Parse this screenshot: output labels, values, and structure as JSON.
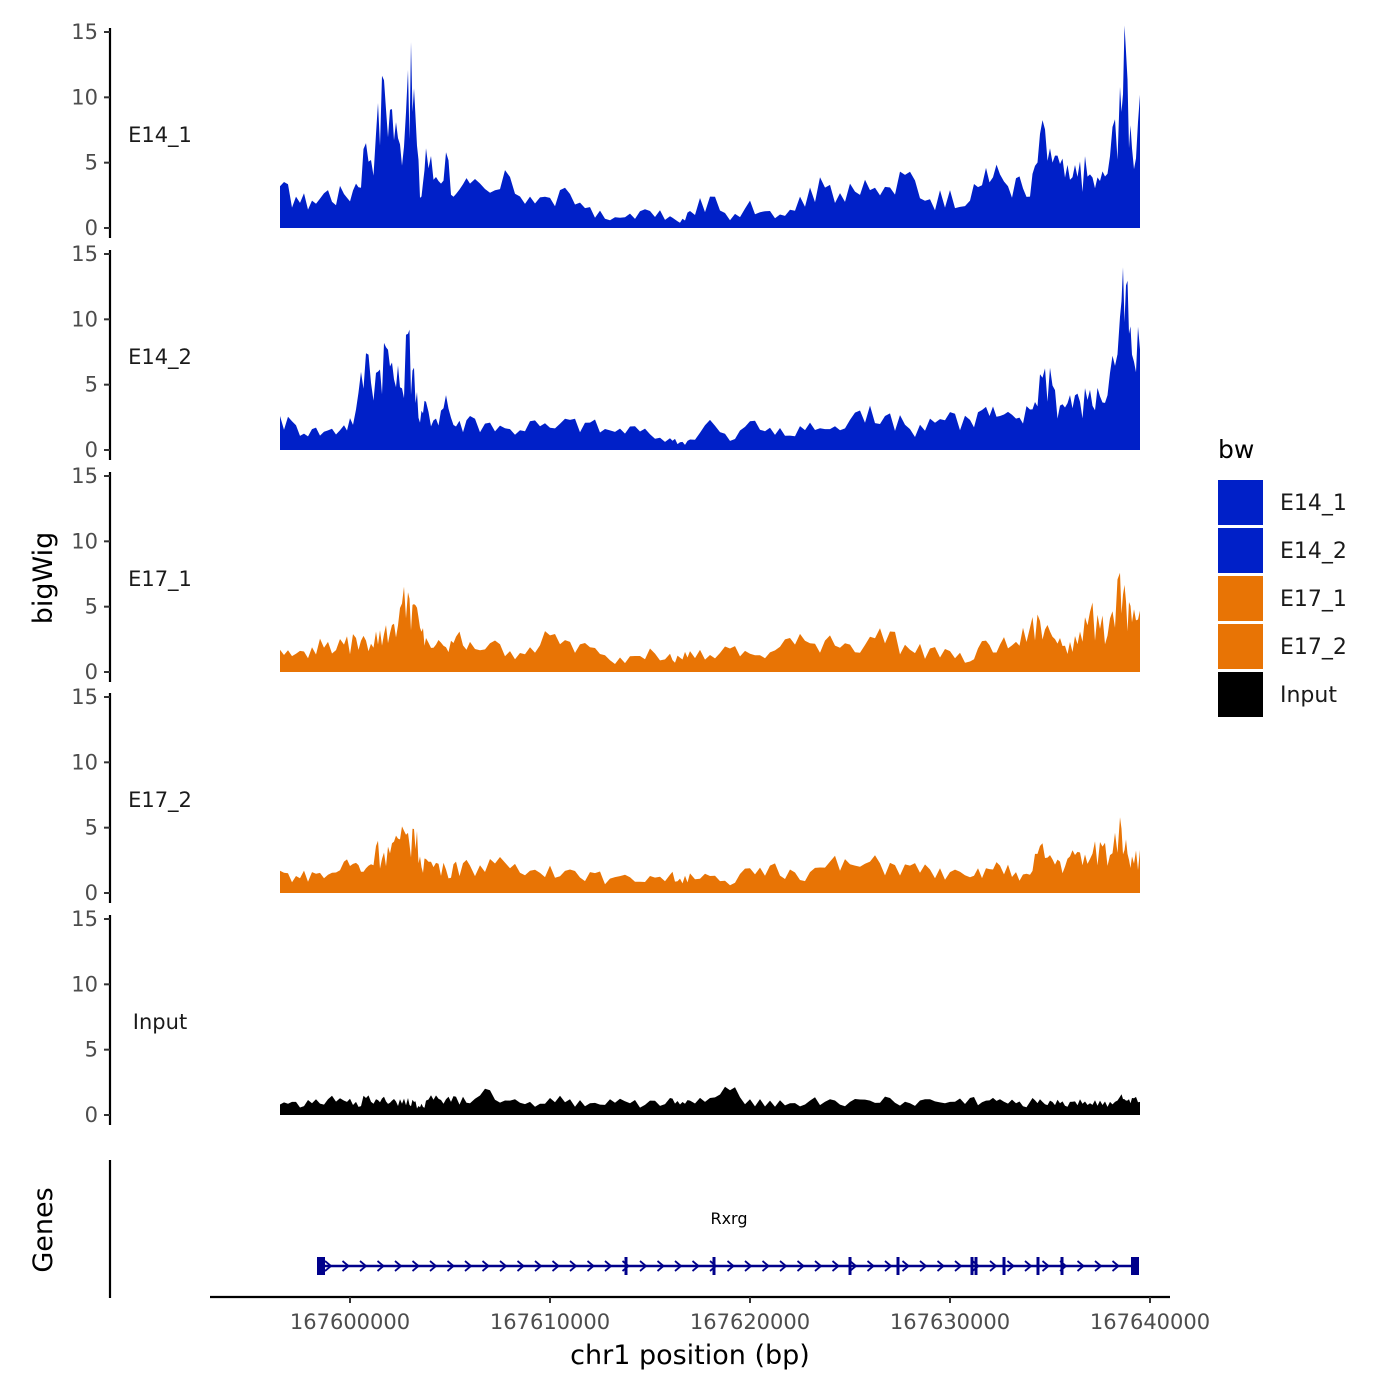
{
  "chart_data": {
    "type": "area",
    "title": "",
    "xlabel": "chr1 position (bp)",
    "ylabel": "bigWig",
    "gene_panel_label": "Genes",
    "x_range": [
      167596500,
      167639500
    ],
    "xlim": [
      167593000,
      167641000
    ],
    "x_ticks": [
      167600000,
      167610000,
      167620000,
      167630000,
      167640000
    ],
    "x_tick_labels": [
      "167600000",
      "167610000",
      "167620000",
      "167630000",
      "167640000"
    ],
    "ylim": [
      0,
      15
    ],
    "y_ticks": [
      0,
      5,
      10,
      15
    ],
    "y_tick_labels": [
      "0",
      "5",
      "10",
      "15"
    ],
    "legend": {
      "title": "bw",
      "position": "right",
      "entries": [
        {
          "label": "E14_1",
          "color": "#0020C8"
        },
        {
          "label": "E14_2",
          "color": "#0020C8"
        },
        {
          "label": "E17_1",
          "color": "#E87405"
        },
        {
          "label": "E17_2",
          "color": "#E87405"
        },
        {
          "label": "Input",
          "color": "#000000"
        }
      ]
    },
    "series": [
      {
        "name": "E14_1",
        "color": "#0020C8",
        "x": [
          167596500,
          167597300,
          167598100,
          167598900,
          167599700,
          167600300,
          167600800,
          167601300,
          167601700,
          167602100,
          167602500,
          167602900,
          167603200,
          167603500,
          167603800,
          167604300,
          167604800,
          167605300,
          167606000,
          167607000,
          167608000,
          167609000,
          167610000,
          167611000,
          167612000,
          167613000,
          167614000,
          167615000,
          167616000,
          167616500,
          167617000,
          167618000,
          167619000,
          167620000,
          167621000,
          167622000,
          167623000,
          167624000,
          167625000,
          167626000,
          167627000,
          167628000,
          167629000,
          167630000,
          167631000,
          167631800,
          167632500,
          167633300,
          167634000,
          167634500,
          167635000,
          167635500,
          167636000,
          167636500,
          167637000,
          167637500,
          167638000,
          167638500,
          167638800,
          167639100,
          167639500
        ],
        "values": [
          3.2,
          2.4,
          2.1,
          2.9,
          2.6,
          3.4,
          6.5,
          7.2,
          11.3,
          9.1,
          6.4,
          12.1,
          10.7,
          2.3,
          6.1,
          3.9,
          5.8,
          2.6,
          3.4,
          2.7,
          3.9,
          2.4,
          2.3,
          2.6,
          1.6,
          0.6,
          1.1,
          1.3,
          0.9,
          0.4,
          1.3,
          2.4,
          0.6,
          2.1,
          1.3,
          1.4,
          3.1,
          3.3,
          3.4,
          2.9,
          3.1,
          4.3,
          2.2,
          2.9,
          2.1,
          4.6,
          4.1,
          3.8,
          2.4,
          7.2,
          6.1,
          4.9,
          3.7,
          5.1,
          4.1,
          3.6,
          5.5,
          10.8,
          13.5,
          6.1,
          10.2
        ]
      },
      {
        "name": "E14_2",
        "color": "#0020C8",
        "x": [
          167596500,
          167597300,
          167598100,
          167598900,
          167599700,
          167600300,
          167600800,
          167601300,
          167601700,
          167602100,
          167602500,
          167602900,
          167603200,
          167603500,
          167603800,
          167604300,
          167604800,
          167605300,
          167606000,
          167607000,
          167608000,
          167609000,
          167610000,
          167611000,
          167612000,
          167613000,
          167614000,
          167615000,
          167616000,
          167616500,
          167617000,
          167618000,
          167619000,
          167620000,
          167621000,
          167622000,
          167623000,
          167624000,
          167625000,
          167626000,
          167627000,
          167628000,
          167629000,
          167630000,
          167631000,
          167631800,
          167632500,
          167633300,
          167634000,
          167634500,
          167635000,
          167635500,
          167636000,
          167636500,
          167637000,
          167637500,
          167638000,
          167638500,
          167638800,
          167639100,
          167639500
        ],
        "values": [
          2.6,
          1.9,
          1.6,
          1.5,
          1.9,
          3.1,
          7.4,
          5.9,
          8.2,
          6.7,
          4.8,
          8.9,
          6.3,
          2.1,
          3.7,
          2.4,
          4.2,
          1.8,
          2.6,
          2.1,
          1.6,
          2.2,
          1.7,
          2.3,
          2.1,
          1.5,
          1.8,
          1.2,
          0.9,
          0.6,
          0.8,
          2.3,
          0.7,
          2.2,
          1.7,
          1.1,
          2.1,
          1.6,
          2.3,
          3.4,
          2.8,
          1.6,
          2.4,
          2.9,
          2.3,
          3.3,
          2.6,
          2.4,
          3.1,
          5.8,
          6.3,
          3.4,
          4.2,
          3.7,
          4.6,
          4.1,
          5.9,
          10.2,
          12.6,
          7.3,
          7.7
        ]
      },
      {
        "name": "E17_1",
        "color": "#E87405",
        "x": [
          167596500,
          167597300,
          167598100,
          167598900,
          167599700,
          167600300,
          167600800,
          167601300,
          167601700,
          167602100,
          167602500,
          167602900,
          167603200,
          167603500,
          167603800,
          167604300,
          167604800,
          167605300,
          167606000,
          167607000,
          167608000,
          167609000,
          167610000,
          167611000,
          167612000,
          167613000,
          167614000,
          167615000,
          167616000,
          167616500,
          167617000,
          167618000,
          167619000,
          167620000,
          167621000,
          167622000,
          167623000,
          167624000,
          167625000,
          167626000,
          167627000,
          167628000,
          167629000,
          167630000,
          167631000,
          167631800,
          167632500,
          167633300,
          167634000,
          167634500,
          167635000,
          167635500,
          167636000,
          167636500,
          167637000,
          167637500,
          167638000,
          167638500,
          167638800,
          167639100,
          167639500
        ],
        "values": [
          1.7,
          1.4,
          1.9,
          2.3,
          2.1,
          2.6,
          2.4,
          3.1,
          2.9,
          3.6,
          4.9,
          6.1,
          5.2,
          3.4,
          2.6,
          2.1,
          1.9,
          2.7,
          2.3,
          2.2,
          1.6,
          1.9,
          2.8,
          2.3,
          1.9,
          0.9,
          1.2,
          1.8,
          1.4,
          1.1,
          1.6,
          1.3,
          1.8,
          1.4,
          1.5,
          2.6,
          2.2,
          2.8,
          2.1,
          2.7,
          3.1,
          1.7,
          1.8,
          1.6,
          0.8,
          2.4,
          2.1,
          2.3,
          3.4,
          3.9,
          3.1,
          2.6,
          2.3,
          3.1,
          4.6,
          3.3,
          4.1,
          7.6,
          5.4,
          3.8,
          4.7
        ]
      },
      {
        "name": "E17_2",
        "color": "#E87405",
        "x": [
          167596500,
          167597300,
          167598100,
          167598900,
          167599700,
          167600300,
          167600800,
          167601300,
          167601700,
          167602100,
          167602500,
          167602900,
          167603200,
          167603500,
          167603800,
          167604300,
          167604800,
          167605300,
          167606000,
          167607000,
          167608000,
          167609000,
          167610000,
          167611000,
          167612000,
          167613000,
          167614000,
          167615000,
          167616000,
          167616500,
          167617000,
          167618000,
          167619000,
          167620000,
          167621000,
          167622000,
          167623000,
          167624000,
          167625000,
          167626000,
          167627000,
          167628000,
          167629000,
          167630000,
          167631000,
          167631800,
          167632500,
          167633300,
          167634000,
          167634500,
          167635000,
          167635500,
          167636000,
          167636500,
          167637000,
          167637500,
          167638000,
          167638500,
          167638800,
          167639100,
          167639500
        ],
        "values": [
          1.7,
          1.3,
          1.6,
          1.4,
          2.4,
          2.3,
          1.9,
          3.6,
          3.1,
          3.8,
          4.1,
          4.6,
          4.9,
          2.8,
          2.6,
          2.3,
          1.8,
          2.4,
          2.1,
          2.6,
          1.9,
          1.7,
          2.1,
          1.8,
          1.6,
          1.1,
          1.2,
          1.3,
          1.4,
          1.1,
          1.5,
          1.3,
          0.6,
          1.9,
          2.1,
          1.8,
          1.6,
          2.4,
          2.2,
          2.4,
          2.3,
          2.1,
          1.8,
          1.6,
          1.2,
          1.9,
          2.1,
          1.6,
          1.4,
          3.6,
          2.9,
          2.4,
          2.8,
          3.1,
          2.6,
          3.9,
          2.9,
          5.8,
          4.1,
          2.8,
          3.3
        ]
      },
      {
        "name": "Input",
        "color": "#000000",
        "x": [
          167596500,
          167597300,
          167598100,
          167598900,
          167599700,
          167600300,
          167600800,
          167601300,
          167601700,
          167602100,
          167602500,
          167602900,
          167603200,
          167603500,
          167603800,
          167604300,
          167604800,
          167605300,
          167606000,
          167607000,
          167608000,
          167609000,
          167610000,
          167611000,
          167612000,
          167613000,
          167614000,
          167615000,
          167616000,
          167616500,
          167617000,
          167618000,
          167619000,
          167620000,
          167621000,
          167622000,
          167623000,
          167624000,
          167625000,
          167626000,
          167627000,
          167628000,
          167629000,
          167630000,
          167631000,
          167631800,
          167632500,
          167633300,
          167634000,
          167634500,
          167635000,
          167635500,
          167636000,
          167636500,
          167637000,
          167637500,
          167638000,
          167638500,
          167638800,
          167639100,
          167639500
        ],
        "values": [
          0.8,
          1.0,
          0.9,
          1.2,
          1.1,
          1.0,
          1.3,
          1.2,
          1.4,
          1.1,
          1.2,
          1.3,
          1.0,
          0.6,
          1.1,
          1.5,
          1.2,
          1.4,
          0.9,
          1.9,
          1.1,
          1.0,
          1.3,
          1.2,
          0.9,
          1.2,
          0.9,
          1.1,
          1.3,
          0.8,
          1.1,
          1.3,
          1.9,
          1.2,
          1.1,
          0.9,
          1.1,
          1.2,
          1.0,
          1.1,
          1.3,
          0.9,
          1.2,
          1.0,
          1.3,
          1.1,
          1.2,
          0.9,
          1.0,
          1.2,
          1.1,
          0.9,
          1.0,
          1.2,
          0.9,
          1.1,
          1.0,
          1.4,
          1.1,
          1.3,
          1.0
        ]
      }
    ],
    "genes": [
      {
        "name": "Rxrg",
        "strand": "+",
        "start": 167598500,
        "end": 167639400,
        "exons": [
          167598500,
          167598600,
          167613800,
          167618200,
          167625000,
          167627400,
          167631100,
          167631300,
          167632700,
          167634400,
          167635600,
          167639200,
          167639300
        ]
      }
    ]
  }
}
